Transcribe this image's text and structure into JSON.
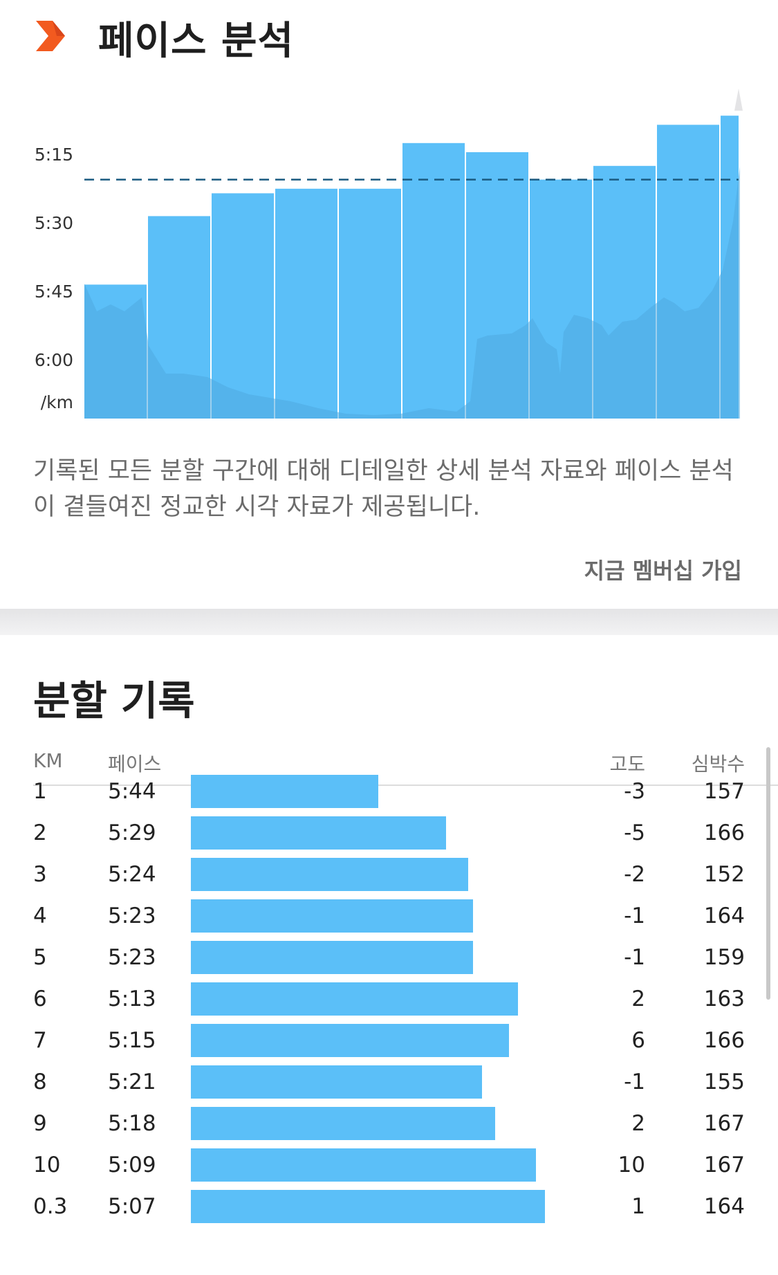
{
  "pace_section": {
    "title": "페이스 분석",
    "icon": "orange-chevron-icon",
    "description": "기록된 모든 분할 구간에 대해 디테일한 상세 분석 자료와 페이스 분석이 곁들여진 정교한 시각 자료가 제공됩니다.",
    "join_label": "지금 멤버십 가입"
  },
  "chart_data": {
    "type": "bar",
    "unit_label": "/km",
    "y_ticks": [
      "5:15",
      "5:30",
      "5:45",
      "6:00"
    ],
    "y_axis": "pace (min:sec per km), inverted – faster is taller",
    "categories": [
      "1",
      "2",
      "3",
      "4",
      "5",
      "6",
      "7",
      "8",
      "9",
      "10",
      "0.3"
    ],
    "values": [
      "5:44",
      "5:29",
      "5:24",
      "5:23",
      "5:23",
      "5:13",
      "5:15",
      "5:21",
      "5:18",
      "5:09",
      "5:07"
    ],
    "average_line": "5:21",
    "colors": {
      "bar": "#5bbff8",
      "avg_line": "#1a5a80",
      "elevation": "#4fa9e0"
    }
  },
  "splits_section": {
    "title": "분할 기록",
    "headers": {
      "km": "KM",
      "pace": "페이스",
      "elevation": "고도",
      "heart_rate": "심박수"
    },
    "rows": [
      {
        "km": "1",
        "pace": "5:44",
        "elevation": "-3",
        "heart_rate": "157"
      },
      {
        "km": "2",
        "pace": "5:29",
        "elevation": "-5",
        "heart_rate": "166"
      },
      {
        "km": "3",
        "pace": "5:24",
        "elevation": "-2",
        "heart_rate": "152"
      },
      {
        "km": "4",
        "pace": "5:23",
        "elevation": "-1",
        "heart_rate": "164"
      },
      {
        "km": "5",
        "pace": "5:23",
        "elevation": "-1",
        "heart_rate": "159"
      },
      {
        "km": "6",
        "pace": "5:13",
        "elevation": "2",
        "heart_rate": "163"
      },
      {
        "km": "7",
        "pace": "5:15",
        "elevation": "6",
        "heart_rate": "166"
      },
      {
        "km": "8",
        "pace": "5:21",
        "elevation": "-1",
        "heart_rate": "155"
      },
      {
        "km": "9",
        "pace": "5:18",
        "elevation": "2",
        "heart_rate": "167"
      },
      {
        "km": "10",
        "pace": "5:09",
        "elevation": "10",
        "heart_rate": "167"
      },
      {
        "km": "0.3",
        "pace": "5:07",
        "elevation": "1",
        "heart_rate": "164"
      }
    ]
  }
}
